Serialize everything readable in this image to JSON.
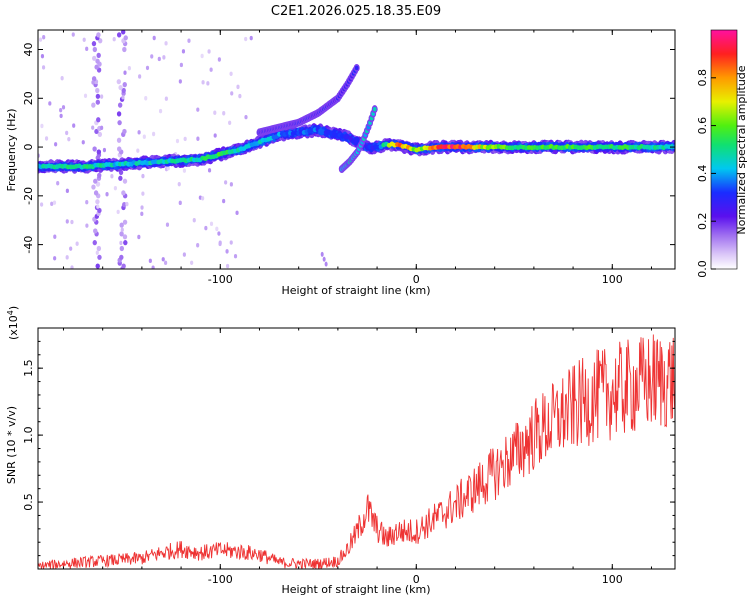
{
  "title": "C2E1.2026.025.18.35.E09",
  "chart_data": [
    {
      "type": "heatmap",
      "name": "spectrogram",
      "xlabel": "Height of straight line (km)",
      "ylabel": "Frequency (Hz)",
      "xlim": [
        -193,
        132
      ],
      "ylim": [
        -50,
        48
      ],
      "x_ticks": [
        -100,
        0,
        100
      ],
      "y_ticks": [
        -40,
        -20,
        0,
        20,
        40
      ],
      "colorbar": {
        "label": "Normalized spectral amplitude",
        "range": [
          0.0,
          1.0
        ],
        "ticks": [
          0.0,
          0.2,
          0.4,
          0.6,
          0.8
        ]
      },
      "main_track": {
        "x": [
          -193,
          -170,
          -150,
          -130,
          -110,
          -100,
          -90,
          -80,
          -70,
          -60,
          -50,
          -40,
          -35,
          -30,
          -25,
          -20,
          -15,
          -10,
          -5,
          0,
          10,
          20,
          40,
          60,
          80,
          100,
          120,
          132
        ],
        "freq": [
          -8,
          -8,
          -7,
          -6,
          -5,
          -3,
          -1,
          2,
          5,
          6,
          7,
          5,
          4,
          2,
          0,
          0,
          1,
          1,
          0,
          -1,
          0,
          0,
          0,
          0,
          0,
          0,
          0,
          0
        ],
        "amplitude": [
          0.45,
          0.5,
          0.45,
          0.45,
          0.5,
          0.55,
          0.45,
          0.45,
          0.4,
          0.35,
          0.35,
          0.3,
          0.3,
          0.3,
          0.3,
          0.35,
          0.55,
          0.8,
          0.8,
          0.6,
          0.85,
          0.9,
          0.6,
          0.55,
          0.6,
          0.55,
          0.5,
          0.45
        ]
      },
      "upper_branch": {
        "x": [
          -80,
          -60,
          -50,
          -40,
          -35,
          -30
        ],
        "freq": [
          6,
          10,
          14,
          20,
          26,
          33
        ]
      },
      "cross_branch": {
        "x": [
          -38,
          -34,
          -30,
          -27,
          -24,
          -21
        ],
        "freq": [
          -9,
          -6,
          -2,
          3,
          9,
          16
        ]
      },
      "noise_bands_x": [
        -163,
        -150
      ]
    },
    {
      "type": "line",
      "name": "snr",
      "xlabel": "Height of straight line (km)",
      "ylabel": "SNR (10 * v/v)",
      "y_multiplier": "(x10^4)",
      "xlim": [
        -193,
        132
      ],
      "ylim": [
        0,
        1.8
      ],
      "x_ticks": [
        -100,
        0,
        100
      ],
      "y_ticks": [
        0.5,
        1.0,
        1.5
      ],
      "color": "#ee3333",
      "x": [
        -193,
        -180,
        -160,
        -140,
        -130,
        -120,
        -110,
        -100,
        -90,
        -80,
        -70,
        -60,
        -50,
        -40,
        -35,
        -30,
        -25,
        -20,
        -15,
        -10,
        0,
        10,
        20,
        30,
        40,
        50,
        60,
        70,
        80,
        90,
        100,
        110,
        120,
        132
      ],
      "values": [
        0.02,
        0.04,
        0.06,
        0.08,
        0.12,
        0.15,
        0.12,
        0.14,
        0.13,
        0.11,
        0.05,
        0.04,
        0.04,
        0.06,
        0.15,
        0.28,
        0.45,
        0.3,
        0.22,
        0.28,
        0.28,
        0.38,
        0.48,
        0.6,
        0.72,
        0.85,
        1.0,
        1.1,
        1.2,
        1.28,
        1.32,
        1.36,
        1.4,
        1.42
      ]
    }
  ],
  "ui": {
    "top_ylabel": "Frequency (Hz)",
    "top_xlabel": "Height of straight line (km)",
    "bottom_ylabel": "SNR (10 * v/v)",
    "bottom_xlabel": "Height of straight line (km)",
    "bottom_multiplier": "(x10",
    "bottom_multiplier_exp": "4",
    "bottom_multiplier_close": ")",
    "colorbar_label": "Normalized spectral amplitude"
  }
}
